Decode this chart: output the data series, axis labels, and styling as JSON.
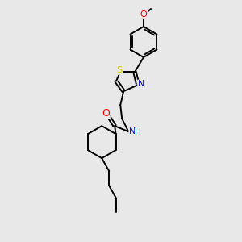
{
  "background_color": "#e8e8e8",
  "bond_color": "#000000",
  "atom_colors": {
    "O": "#ff0000",
    "N": "#0000cd",
    "S": "#cccc00",
    "C": "#000000",
    "H": "#4db8b8"
  },
  "figsize": [
    3.0,
    3.0
  ],
  "dpi": 100,
  "lw": 1.4,
  "fontsize": 7.5
}
